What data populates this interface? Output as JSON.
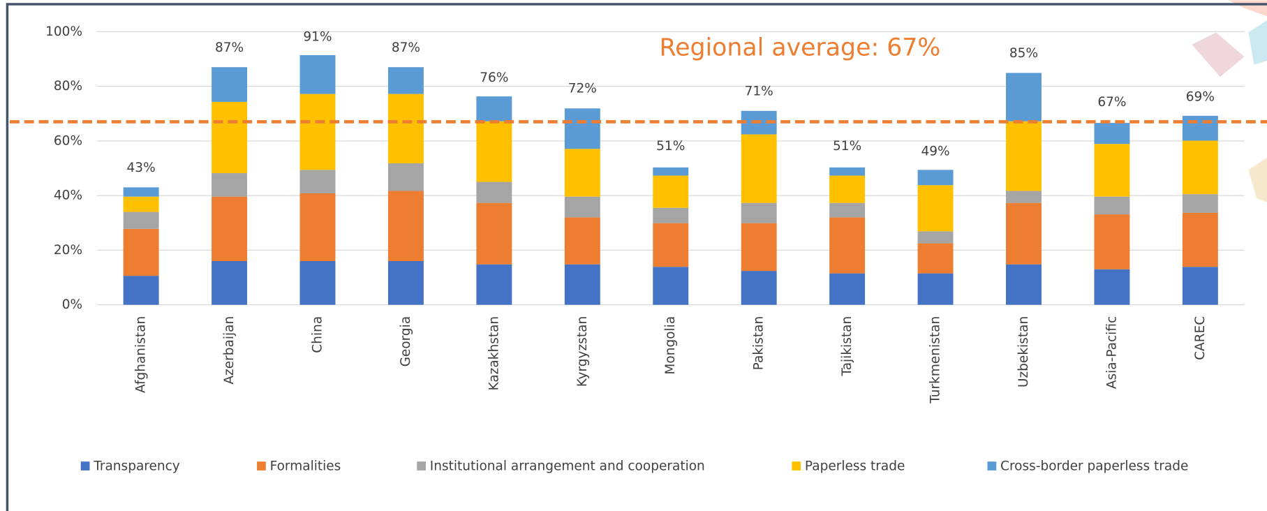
{
  "chart_data": {
    "type": "stacked_bar",
    "categories": [
      "Afghanistan",
      "Azerbaijan",
      "China",
      "Georgia",
      "Kazakhstan",
      "Kyrgyzstan",
      "Mongolia",
      "Pakistan",
      "Tajikistan",
      "Turkmenistan",
      "Uzbekistan",
      "Asia-Pacific",
      "CAREC"
    ],
    "series": [
      {
        "name": "Transparency",
        "color": "#4472c4",
        "values": [
          10.6,
          16,
          16,
          16,
          14.8,
          14.8,
          13.9,
          12.4,
          11.5,
          11.5,
          14.8,
          13,
          13.9
        ]
      },
      {
        "name": "Formalities",
        "color": "#ed7d31",
        "values": [
          17.2,
          23.6,
          24.8,
          25.7,
          22.5,
          17.2,
          16,
          17.5,
          20.5,
          11,
          22.5,
          20.1,
          19.8
        ]
      },
      {
        "name": "Institutional arrangement and cooperation",
        "color": "#a5a5a5",
        "values": [
          6.2,
          8.6,
          8.6,
          10.1,
          7.7,
          7.6,
          5.6,
          7.4,
          5.3,
          4.4,
          4.4,
          6.5,
          6.8
        ]
      },
      {
        "name": "Paperless trade",
        "color": "#ffc000",
        "values": [
          5.6,
          26.1,
          27.8,
          25.4,
          22.2,
          17.5,
          11.8,
          25.1,
          10,
          16.9,
          25.5,
          19.3,
          19.6
        ]
      },
      {
        "name": "Cross-border paperless trade",
        "color": "#5b9bd5",
        "values": [
          3.4,
          12.7,
          14.2,
          9.8,
          9.1,
          14.8,
          3.0,
          8.6,
          3,
          5.6,
          17.7,
          7.7,
          9.1
        ]
      }
    ],
    "totals": [
      43,
      87,
      91,
      87,
      76,
      72,
      51,
      71,
      51,
      49,
      85,
      67,
      69
    ],
    "total_labels": [
      "43%",
      "87%",
      "91%",
      "87%",
      "76%",
      "72%",
      "51%",
      "71%",
      "51%",
      "49%",
      "85%",
      "67%",
      "69%"
    ],
    "ylim": [
      0,
      100
    ],
    "yticks": [
      {
        "value": 0,
        "label": "0%"
      },
      {
        "value": 20,
        "label": "20%"
      },
      {
        "value": 40,
        "label": "40%"
      },
      {
        "value": 60,
        "label": "60%"
      },
      {
        "value": 80,
        "label": "80%"
      },
      {
        "value": 100,
        "label": "100%"
      }
    ],
    "grid": true,
    "legend": "bottom",
    "reference_line": {
      "value": 67,
      "label": "Regional average: 67%",
      "color": "#ed7d31"
    }
  }
}
